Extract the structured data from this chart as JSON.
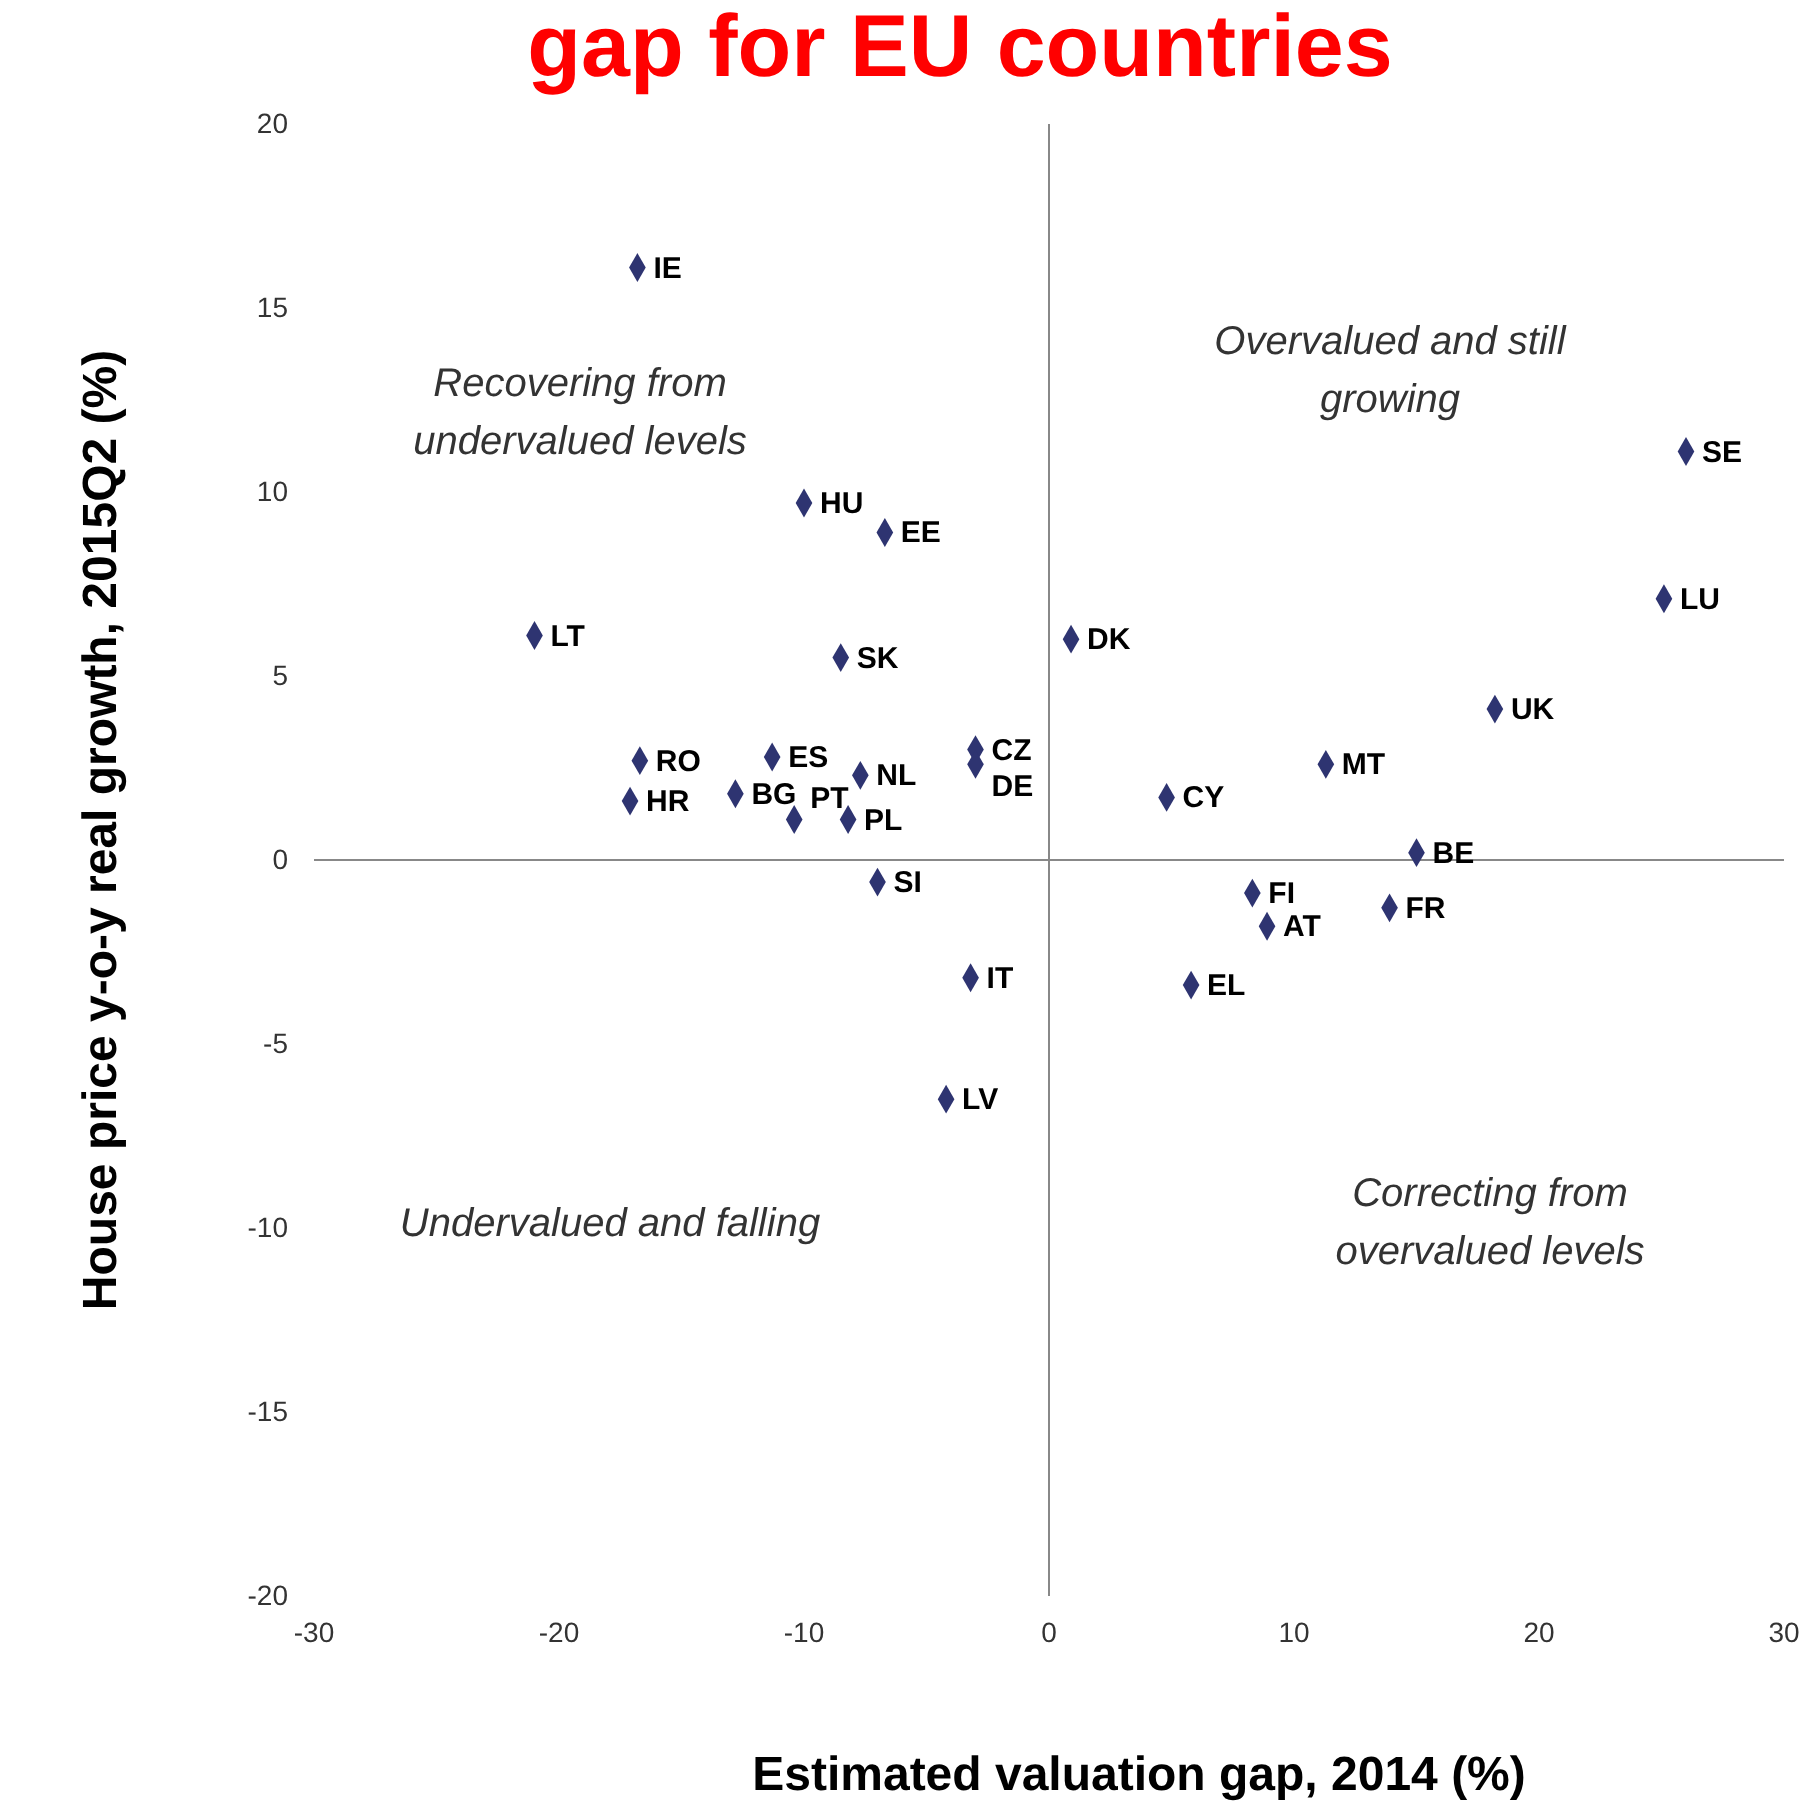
{
  "chart_data": {
    "type": "scatter",
    "title": "gap for EU countries",
    "xlabel": "Estimated valuation gap, 2014 (%)",
    "ylabel": "House price y-o-y real growth, 2015Q2 (%)",
    "xlim": [
      -30,
      30
    ],
    "xticks": [
      -30,
      -20,
      -10,
      0,
      10,
      20,
      30
    ],
    "ylim": [
      -20,
      20
    ],
    "yticks": [
      -20,
      -15,
      -10,
      -5,
      0,
      5,
      10,
      15,
      20
    ],
    "marker": "diamond",
    "annotations": [
      "Recovering from\nundervalued levels",
      "Overvalued and still\ngrowing",
      "Undervalued and falling",
      "Correcting from\novervalued levels"
    ],
    "series": [
      {
        "name": "IE",
        "color": "#2e3471",
        "x": [
          -16.8
        ],
        "values": [
          16.1
        ]
      },
      {
        "name": "HU",
        "color": "#2e3471",
        "x": [
          -10.0
        ],
        "values": [
          9.7
        ]
      },
      {
        "name": "EE",
        "color": "#2e3471",
        "x": [
          -6.7
        ],
        "values": [
          8.9
        ]
      },
      {
        "name": "LT",
        "color": "#2e3471",
        "x": [
          -21.0
        ],
        "values": [
          6.1
        ]
      },
      {
        "name": "SK",
        "color": "#2e3471",
        "x": [
          -8.5
        ],
        "values": [
          5.5
        ]
      },
      {
        "name": "DK",
        "color": "#2e3471",
        "x": [
          0.9
        ],
        "values": [
          6.0
        ]
      },
      {
        "name": "ES",
        "color": "#2e3471",
        "x": [
          -11.3
        ],
        "values": [
          2.8
        ]
      },
      {
        "name": "RO",
        "color": "#2e3471",
        "x": [
          -16.7
        ],
        "values": [
          2.7
        ]
      },
      {
        "name": "NL",
        "color": "#2e3471",
        "x": [
          -7.7
        ],
        "values": [
          2.3
        ]
      },
      {
        "name": "CZ",
        "color": "#2e3471",
        "x": [
          -3.0
        ],
        "values": [
          3.0
        ]
      },
      {
        "name": "DE",
        "color": "#2e3471",
        "x": [
          -3.0
        ],
        "values": [
          2.6
        ]
      },
      {
        "name": "BG",
        "color": "#2e3471",
        "x": [
          -12.8
        ],
        "values": [
          1.8
        ]
      },
      {
        "name": "HR",
        "color": "#2e3471",
        "x": [
          -17.1
        ],
        "values": [
          1.6
        ]
      },
      {
        "name": "PT",
        "color": "#2e3471",
        "x": [
          -10.4
        ],
        "values": [
          1.1
        ]
      },
      {
        "name": "PL",
        "color": "#2e3471",
        "x": [
          -8.2
        ],
        "values": [
          1.1
        ]
      },
      {
        "name": "SI",
        "color": "#2e3471",
        "x": [
          -7.0
        ],
        "values": [
          -0.6
        ]
      },
      {
        "name": "IT",
        "color": "#2e3471",
        "x": [
          -3.2
        ],
        "values": [
          -3.2
        ]
      },
      {
        "name": "LV",
        "color": "#2e3471",
        "x": [
          -4.2
        ],
        "values": [
          -6.5
        ]
      },
      {
        "name": "CY",
        "color": "#2e3471",
        "x": [
          4.8
        ],
        "values": [
          1.7
        ]
      },
      {
        "name": "MT",
        "color": "#2e3471",
        "x": [
          11.3
        ],
        "values": [
          2.6
        ]
      },
      {
        "name": "UK",
        "color": "#2e3471",
        "x": [
          18.2
        ],
        "values": [
          4.1
        ]
      },
      {
        "name": "LU",
        "color": "#2e3471",
        "x": [
          25.1
        ],
        "values": [
          7.1
        ]
      },
      {
        "name": "SE",
        "color": "#2e3471",
        "x": [
          26.0
        ],
        "values": [
          11.1
        ]
      },
      {
        "name": "BE",
        "color": "#2e3471",
        "x": [
          15.0
        ],
        "values": [
          0.2
        ]
      },
      {
        "name": "FI",
        "color": "#2e3471",
        "x": [
          8.3
        ],
        "values": [
          -0.9
        ]
      },
      {
        "name": "AT",
        "color": "#2e3471",
        "x": [
          8.9
        ],
        "values": [
          -1.8
        ]
      },
      {
        "name": "FR",
        "color": "#2e3471",
        "x": [
          13.9
        ],
        "values": [
          -1.3
        ]
      },
      {
        "name": "EL",
        "color": "#2e3471",
        "x": [
          5.8
        ],
        "values": [
          -3.4
        ]
      }
    ]
  }
}
